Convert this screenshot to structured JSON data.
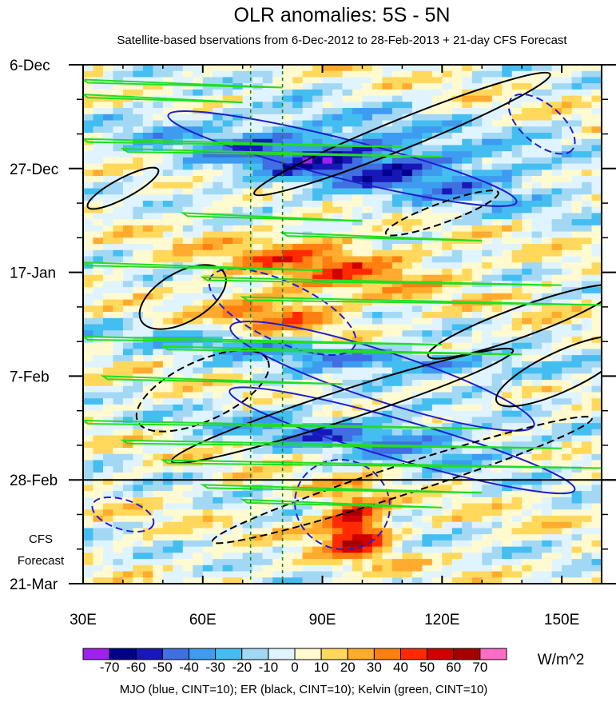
{
  "chart_data": {
    "type": "heatmap",
    "title": "OLR anomalies: 5S - 5N",
    "subtitle": "Satellite-based bservations from 6-Dec-2012 to 28-Feb-2013 + 21-day CFS Forecast",
    "x_ticks": [
      {
        "value": 30,
        "label": "30E"
      },
      {
        "value": 60,
        "label": "60E"
      },
      {
        "value": 90,
        "label": "90E"
      },
      {
        "value": 120,
        "label": "120E"
      },
      {
        "value": 150,
        "label": "150E"
      }
    ],
    "xlim": [
      30,
      160
    ],
    "y_ticks": [
      {
        "day": 0,
        "label": "6-Dec"
      },
      {
        "day": 21,
        "label": "27-Dec"
      },
      {
        "day": 42,
        "label": "17-Jan"
      },
      {
        "day": 63,
        "label": "7-Feb"
      },
      {
        "day": 84,
        "label": "28-Feb"
      },
      {
        "day": 105,
        "label": "21-Mar"
      }
    ],
    "ylim_days": [
      0,
      105
    ],
    "forecast_start_day": 84,
    "forecast_label_line1": "CFS",
    "forecast_label_line2": "Forecast",
    "reference_longitudes": [
      72,
      80
    ],
    "colorbar": {
      "unit": "W/m^2",
      "labels": [
        "-70",
        "-60",
        "-50",
        "-40",
        "-30",
        "-20",
        "-10",
        "0",
        "10",
        "20",
        "30",
        "40",
        "50",
        "60",
        "70"
      ],
      "colors": [
        "#a020f0",
        "#00008b",
        "#1818b8",
        "#3f6fe0",
        "#3d9cf0",
        "#44bef0",
        "#a3d8f5",
        "#dff4ff",
        "#fffad0",
        "#ffd85c",
        "#ffab2e",
        "#ff7f10",
        "#ff2a00",
        "#d00000",
        "#a50000",
        "#ff6cc6"
      ]
    },
    "contour_legend": "MJO (blue, CINT=10); ER (black, CINT=10); Kelvin (green, CINT=10)",
    "contour_colors": {
      "mjo": "#1f1fd0",
      "er": "#000000",
      "kelvin": "#22dd22"
    },
    "anomaly_features": [
      {
        "sign": "negative",
        "lon": [
          45,
          150
        ],
        "days": [
          10,
          28
        ],
        "value": -50
      },
      {
        "sign": "negative",
        "lon": [
          40,
          160
        ],
        "days": [
          56,
          62
        ],
        "value": -45
      },
      {
        "sign": "negative",
        "lon": [
          60,
          145
        ],
        "days": [
          70,
          80
        ],
        "value": -40
      },
      {
        "sign": "positive",
        "lon": [
          60,
          125
        ],
        "days": [
          34,
          46
        ],
        "value": 35
      },
      {
        "sign": "positive",
        "lon": [
          88,
          108
        ],
        "days": [
          86,
          101
        ],
        "value": 65
      },
      {
        "sign": "positive",
        "lon": [
          60,
          100
        ],
        "days": [
          45,
          55
        ],
        "value": 40
      }
    ]
  }
}
